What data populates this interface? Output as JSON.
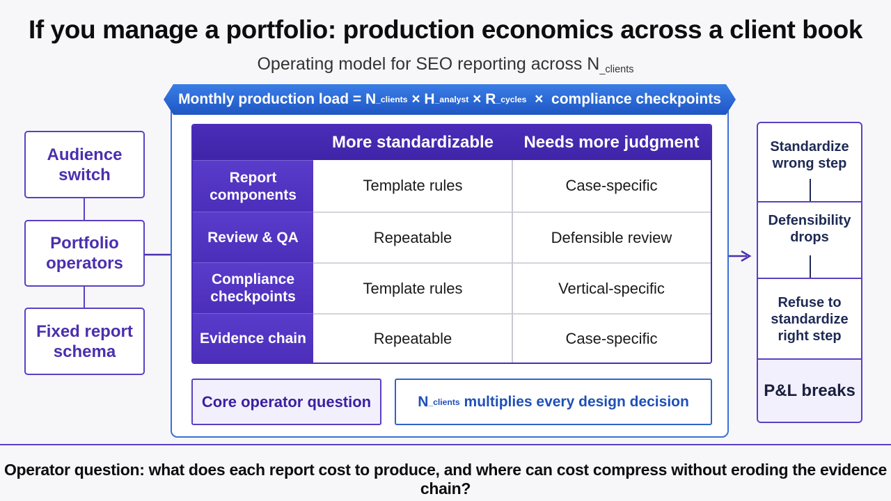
{
  "title": "If you manage a portfolio: production economics across a client book",
  "subtitle": {
    "prefix": "Operating model for SEO reporting across N",
    "sub": "_clients"
  },
  "banner": {
    "p1": "Monthly production load = N",
    "s1": "_clients",
    "p2": " × H",
    "s2": "_analyst",
    "p3": " × R",
    "s3": "_cycles",
    "p4": "  ×  compliance checkpoints"
  },
  "left_flow": [
    {
      "label": "Audience switch"
    },
    {
      "label": "Portfolio operators"
    },
    {
      "label": "Fixed report schema"
    }
  ],
  "matrix": {
    "columns": [
      "More standardizable",
      "Needs more judgment"
    ],
    "rows": [
      {
        "label": "Report components",
        "standardizable": "Template rules",
        "judgment": "Case-specific"
      },
      {
        "label": "Review & QA",
        "standardizable": "Repeatable",
        "judgment": "Defensible review"
      },
      {
        "label": "Compliance checkpoints",
        "standardizable": "Template rules",
        "judgment": "Vertical-specific"
      },
      {
        "label": "Evidence chain",
        "standardizable": "Repeatable",
        "judgment": "Case-specific"
      }
    ]
  },
  "core_question": "Core operator question",
  "multiplier": {
    "n": "N",
    "sub": "_clients",
    "rest": " multiplies every design decision"
  },
  "right_flow": [
    {
      "label": "Standardize wrong step"
    },
    {
      "label": "Defensibility drops"
    },
    {
      "label": "Refuse to standardize right step"
    },
    {
      "label": "P&L breaks"
    }
  ],
  "footer": "Operator question: what does each report cost to produce, and where can cost compress without eroding the evidence chain?",
  "colors": {
    "purple": "#4b2cb8",
    "blue": "#2f6fd8",
    "navy": "#1e2a55"
  }
}
